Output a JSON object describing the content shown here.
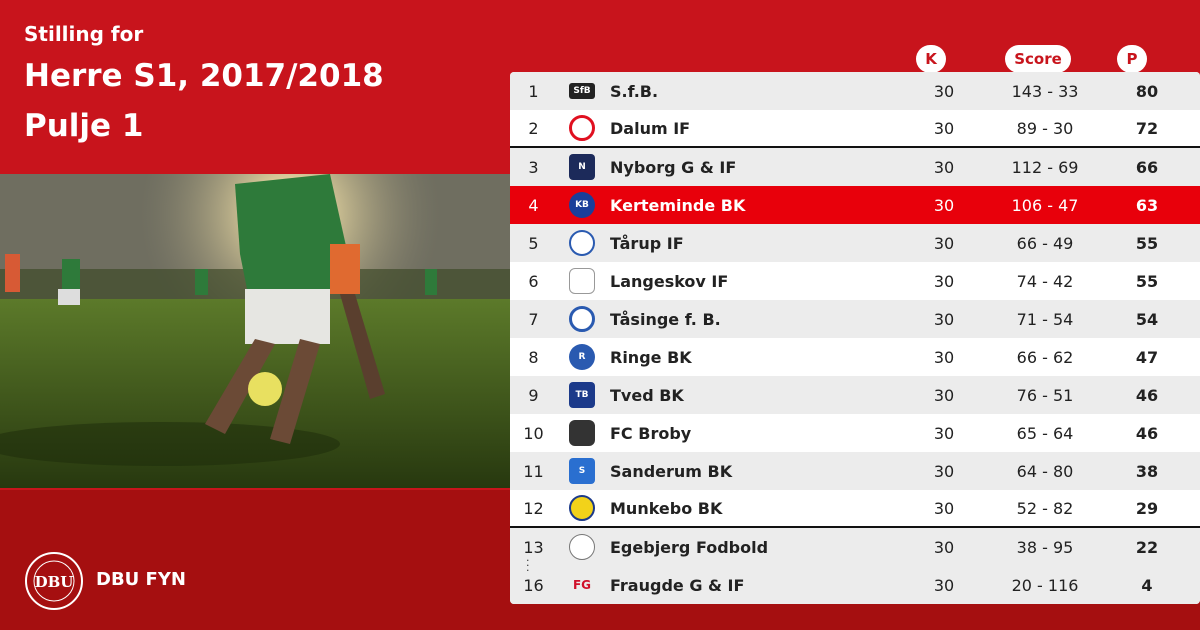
{
  "header": {
    "subtitle": "Stilling for",
    "title_line1": "Herre S1, 2017/2018",
    "title_line2": "Pulje 1"
  },
  "columns": {
    "k": "K",
    "score": "Score",
    "p": "P"
  },
  "brand": {
    "logo_text": "DBU",
    "name": "DBU FYN"
  },
  "colors": {
    "primary": "#c8141c",
    "dark": "#a50f10",
    "highlight": "#e8000b"
  },
  "rows": [
    {
      "rank": "1",
      "team": "S.f.B.",
      "k": "30",
      "score": "143 - 33",
      "p": "80",
      "crest": "sfb-crest"
    },
    {
      "rank": "2",
      "team": "Dalum IF",
      "k": "30",
      "score": "89 - 30",
      "p": "72",
      "crest": "dalum-crest"
    },
    {
      "rank": "3",
      "team": "Nyborg G & IF",
      "k": "30",
      "score": "112 - 69",
      "p": "66",
      "crest": "nyborg-crest"
    },
    {
      "rank": "4",
      "team": "Kerteminde BK",
      "k": "30",
      "score": "106 - 47",
      "p": "63",
      "crest": "kerteminde-crest"
    },
    {
      "rank": "5",
      "team": "Tårup IF",
      "k": "30",
      "score": "66 - 49",
      "p": "55",
      "crest": "taarup-crest"
    },
    {
      "rank": "6",
      "team": "Langeskov IF",
      "k": "30",
      "score": "74 - 42",
      "p": "55",
      "crest": "langeskov-crest"
    },
    {
      "rank": "7",
      "team": "Tåsinge  f. B.",
      "k": "30",
      "score": "71 - 54",
      "p": "54",
      "crest": "taasinge-crest"
    },
    {
      "rank": "8",
      "team": "Ringe BK",
      "k": "30",
      "score": "66 - 62",
      "p": "47",
      "crest": "ringe-crest"
    },
    {
      "rank": "9",
      "team": "Tved BK",
      "k": "30",
      "score": "76 - 51",
      "p": "46",
      "crest": "tved-crest"
    },
    {
      "rank": "10",
      "team": "FC Broby",
      "k": "30",
      "score": "65 - 64",
      "p": "46",
      "crest": "broby-crest"
    },
    {
      "rank": "11",
      "team": "Sanderum BK",
      "k": "30",
      "score": "64 - 80",
      "p": "38",
      "crest": "sanderum-crest"
    },
    {
      "rank": "12",
      "team": "Munkebo BK",
      "k": "30",
      "score": "52 - 82",
      "p": "29",
      "crest": "munkebo-crest"
    },
    {
      "rank": "13",
      "team": "Egebjerg Fodbold",
      "k": "30",
      "score": "38 - 95",
      "p": "22",
      "crest": "egebjerg-crest"
    },
    {
      "rank": "16",
      "team": "Fraugde G & IF",
      "k": "30",
      "score": "20 - 116",
      "p": "4",
      "crest": "fraugde-crest"
    }
  ]
}
